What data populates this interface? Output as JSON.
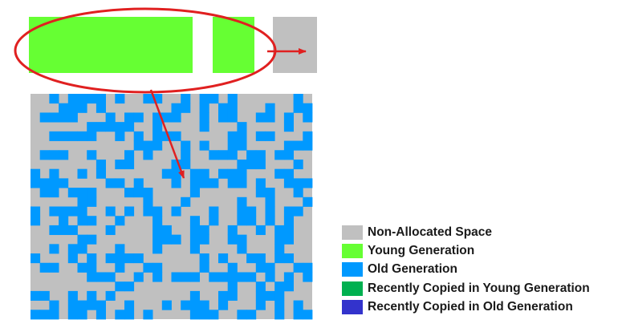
{
  "colors": {
    "non_allocated": "#c0c0c0",
    "young": "#66ff33",
    "old": "#0099ff",
    "recent_young": "#00b050",
    "recent_old": "#3333cc",
    "annotation": "#e02020"
  },
  "grid": {
    "cols": 30,
    "rows": 24,
    "pattern": [
      "..#.####.#..##..#.##.#......#.",
      "...###.#.......##.#.##...#..##",
      ".####...#.##.###..#.##..##.#.#",
      "......#####..#....#...#....#..",
      "..#####..#.#.###.....##.##...#",
      "...........###..#.#..##....###",
      ".###..#...#.#...#..###.##.##..",
      ".......#.##....##.....###...#.",
      "#.#..#.#......##.##.###...##..",
      "####....##.#...#.###.##.#..###",
      ".##.###...###....#......##..#.",
      ".....##.....#...#.....#..#...#",
      "#.####..#.#.##.#...#..##.#.##.",
      "#..#.##..#...#...#.#..##.#.#..",
      "..###...#....##..##..#..#.##..",
      ".....##......###.##..##...##..",
      "..#.##...#...#...#....#...#...",
      "#...#.#.####......#.#..##.##..",
      ".##..##..#..##....#..#..##..##",
      "......###..#.#.###.#####.#.#.#",
      ".........##..........#..#.##..",
      "##..#.#.#........#..##..###...",
      "..#.####..#...#.###.#...#.#.#.",
      "###.##.#.##.#....###..##..#.##"
    ]
  },
  "legend": [
    {
      "label": "Non-Allocated Space",
      "color_key": "non_allocated"
    },
    {
      "label": "Young Generation",
      "color_key": "young"
    },
    {
      "label": "Old Generation",
      "color_key": "old"
    },
    {
      "label": "Recently Copied in Young Generation",
      "color_key": "recent_young"
    },
    {
      "label": "Recently Copied in Old Generation",
      "color_key": "recent_old"
    }
  ]
}
